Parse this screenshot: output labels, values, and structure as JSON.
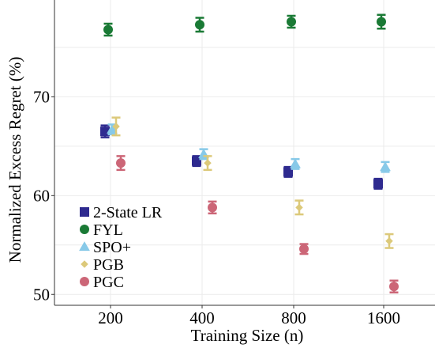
{
  "chart_data": {
    "type": "scatter",
    "xlabel": "Training Size (n)",
    "ylabel": "Normalized Excess Regret (%)",
    "categories": [
      "200",
      "400",
      "800",
      "1600"
    ],
    "ylim": [
      48.9,
      79.8
    ],
    "yticks": [
      50,
      60,
      70
    ],
    "grid": true,
    "legend_position": "left-lower",
    "series": [
      {
        "name": "2-State LR",
        "marker": "square",
        "color": "#2e2a8f",
        "values": [
          66.5,
          63.5,
          62.4,
          61.2
        ],
        "errors": [
          0.6,
          0.5,
          0.5,
          0.5
        ]
      },
      {
        "name": "FYL",
        "marker": "circle",
        "color": "#1a7a35",
        "values": [
          76.8,
          77.3,
          77.6,
          77.6
        ],
        "errors": [
          0.6,
          0.7,
          0.6,
          0.7
        ]
      },
      {
        "name": "SPO+",
        "marker": "triangle",
        "color": "#87c9e8",
        "values": [
          66.7,
          64.2,
          63.2,
          62.9
        ],
        "errors": [
          0.5,
          0.5,
          0.5,
          0.5
        ]
      },
      {
        "name": "PGB",
        "marker": "diamond",
        "color": "#dcc97a",
        "values": [
          67.0,
          63.3,
          58.8,
          55.4
        ],
        "errors": [
          0.9,
          0.7,
          0.7,
          0.7
        ]
      },
      {
        "name": "PGC",
        "marker": "circle",
        "color": "#cc6677",
        "values": [
          63.3,
          58.8,
          54.6,
          50.8
        ],
        "errors": [
          0.7,
          0.6,
          0.5,
          0.6
        ]
      }
    ]
  }
}
